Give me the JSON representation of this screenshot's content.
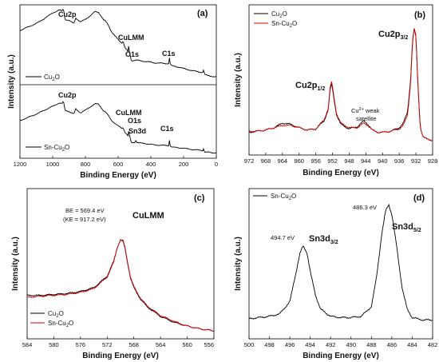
{
  "chart_data": [
    {
      "panel": "(a)",
      "type": "line",
      "xlabel": "Binding Energy (eV)",
      "ylabel": "Intensity (a.u.)",
      "xlim": [
        1200,
        0
      ],
      "xticks": [
        1200,
        1000,
        800,
        600,
        400,
        200,
        0
      ],
      "stacked": true,
      "series": [
        {
          "name": "Cu2O",
          "color": "#000000",
          "x": [
            1200,
            1150,
            1100,
            1050,
            1000,
            960,
            940,
            935,
            932,
            925,
            900,
            870,
            860,
            830,
            800,
            770,
            740,
            720,
            700,
            690,
            680,
            660,
            640,
            600,
            575,
            570,
            560,
            540,
            535,
            532,
            528,
            520,
            490,
            470,
            400,
            380,
            300,
            288,
            285,
            282,
            275,
            250,
            200,
            150,
            100,
            80,
            76,
            74,
            70,
            50,
            30,
            10,
            0
          ],
          "y": [
            0.68,
            0.73,
            0.78,
            0.85,
            0.93,
            0.97,
            0.96,
            0.99,
            0.96,
            0.84,
            0.82,
            0.78,
            0.86,
            0.8,
            0.84,
            0.89,
            0.95,
            0.94,
            0.87,
            0.83,
            0.82,
            0.76,
            0.66,
            0.55,
            0.5,
            0.54,
            0.44,
            0.38,
            0.46,
            0.38,
            0.36,
            0.25,
            0.26,
            0.25,
            0.23,
            0.22,
            0.21,
            0.21,
            0.34,
            0.21,
            0.18,
            0.17,
            0.14,
            0.11,
            0.09,
            0.08,
            0.18,
            0.08,
            0.05,
            0.04,
            0.03,
            0.02,
            0.02
          ]
        },
        {
          "name": "Sn-Cu2O",
          "color": "#000000",
          "x": [
            1200,
            1150,
            1100,
            1050,
            1000,
            960,
            940,
            935,
            932,
            925,
            900,
            870,
            860,
            830,
            800,
            770,
            740,
            720,
            700,
            690,
            680,
            660,
            640,
            600,
            575,
            570,
            560,
            540,
            535,
            532,
            528,
            520,
            495,
            492,
            490,
            487,
            485,
            470,
            400,
            380,
            300,
            288,
            285,
            282,
            275,
            250,
            200,
            150,
            100,
            80,
            76,
            74,
            70,
            50,
            30,
            10,
            0
          ],
          "y": [
            0.5,
            0.55,
            0.6,
            0.66,
            0.72,
            0.77,
            0.76,
            0.8,
            0.77,
            0.66,
            0.64,
            0.6,
            0.68,
            0.62,
            0.66,
            0.71,
            0.76,
            0.75,
            0.69,
            0.65,
            0.64,
            0.58,
            0.5,
            0.42,
            0.38,
            0.4,
            0.33,
            0.27,
            0.34,
            0.28,
            0.26,
            0.16,
            0.17,
            0.24,
            0.17,
            0.26,
            0.17,
            0.16,
            0.14,
            0.13,
            0.12,
            0.12,
            0.26,
            0.12,
            0.1,
            0.09,
            0.08,
            0.06,
            0.05,
            0.04,
            0.14,
            0.04,
            0.02,
            0.02,
            0.01,
            0.01,
            0.01
          ]
        }
      ],
      "annotations": [
        "Cu2p",
        "CuLMM",
        "O1s",
        "C1s",
        "Cu2p",
        "CuLMM",
        "O1s",
        "Sn3d",
        "C1s"
      ]
    },
    {
      "panel": "(b)",
      "type": "line",
      "xlabel": "Binding Energy (eV)",
      "ylabel": "Intensity (a.u.)",
      "xlim": [
        972,
        928
      ],
      "xticks": [
        972,
        968,
        964,
        960,
        956,
        952,
        948,
        944,
        940,
        936,
        932,
        928
      ],
      "series": [
        {
          "name": "Cu2O",
          "color": "#000000",
          "x": [
            972,
            970,
            968,
            966,
            964,
            962,
            960,
            958,
            956,
            954,
            953,
            952.6,
            952.2,
            951.6,
            951,
            950,
            948,
            946,
            944.5,
            943.5,
            942.5,
            941,
            940,
            938,
            936,
            935,
            934,
            933.3,
            932.8,
            932.4,
            932.0,
            931.5,
            931,
            930.5,
            930,
            929,
            928
          ],
          "y": [
            0.1,
            0.11,
            0.12,
            0.14,
            0.18,
            0.17,
            0.14,
            0.12,
            0.13,
            0.2,
            0.3,
            0.46,
            0.52,
            0.38,
            0.25,
            0.17,
            0.13,
            0.15,
            0.2,
            0.17,
            0.12,
            0.1,
            0.1,
            0.11,
            0.14,
            0.18,
            0.28,
            0.55,
            0.9,
            1.0,
            0.92,
            0.5,
            0.16,
            0.08,
            0.05,
            0.04,
            0.03
          ]
        },
        {
          "name": "Sn-Cu2O",
          "color": "#e00000",
          "x": [
            972,
            970,
            968,
            966,
            964,
            962,
            960,
            958,
            956,
            954,
            953,
            952.6,
            952.2,
            951.6,
            951,
            950,
            948,
            946,
            944.5,
            943.5,
            942.5,
            941,
            940,
            938,
            936,
            935,
            934,
            933.3,
            932.8,
            932.4,
            932.0,
            931.5,
            931,
            930.5,
            930,
            929,
            928
          ],
          "y": [
            0.11,
            0.11,
            0.12,
            0.14,
            0.16,
            0.16,
            0.14,
            0.12,
            0.13,
            0.21,
            0.31,
            0.48,
            0.54,
            0.4,
            0.26,
            0.18,
            0.14,
            0.14,
            0.18,
            0.16,
            0.12,
            0.1,
            0.1,
            0.11,
            0.13,
            0.16,
            0.25,
            0.52,
            0.88,
            1.0,
            0.94,
            0.52,
            0.17,
            0.08,
            0.05,
            0.04,
            0.03
          ]
        }
      ],
      "annotations": [
        "Cu2p1/2",
        "Cu2p3/2",
        "Cu2+ weak satellite"
      ]
    },
    {
      "panel": "(c)",
      "type": "line",
      "xlabel": "Binding Energy (eV)",
      "ylabel": "Intensity (a.u.)",
      "xlim": [
        584,
        556
      ],
      "xticks": [
        584,
        580,
        576,
        572,
        568,
        564,
        560,
        556
      ],
      "series": [
        {
          "name": "Cu2O",
          "color": "#000000",
          "x": [
            584,
            582,
            580,
            578,
            576,
            574,
            572,
            571,
            570.5,
            570,
            569.6,
            569.3,
            569,
            568.5,
            568,
            567,
            566,
            564,
            562,
            560,
            558,
            556
          ],
          "y": [
            0.42,
            0.42,
            0.43,
            0.44,
            0.46,
            0.5,
            0.62,
            0.78,
            0.92,
            1.0,
            0.98,
            0.9,
            0.78,
            0.6,
            0.5,
            0.38,
            0.3,
            0.2,
            0.14,
            0.1,
            0.07,
            0.05
          ]
        },
        {
          "name": "Sn-Cu2O",
          "color": "#e00000",
          "x": [
            584,
            582,
            580,
            578,
            576,
            574,
            572,
            571,
            570.5,
            570,
            569.6,
            569.3,
            569,
            568.5,
            568,
            567,
            566,
            564,
            562,
            560,
            558,
            556
          ],
          "y": [
            0.4,
            0.41,
            0.42,
            0.43,
            0.45,
            0.49,
            0.61,
            0.77,
            0.92,
            1.0,
            0.99,
            0.91,
            0.79,
            0.61,
            0.51,
            0.39,
            0.31,
            0.21,
            0.15,
            0.1,
            0.07,
            0.05
          ]
        }
      ],
      "annotations": [
        "BE = 569.4 eV",
        "(KE = 917.2 eV)",
        "CuLMM"
      ]
    },
    {
      "panel": "(d)",
      "type": "line",
      "xlabel": "Binding Energy (eV)",
      "ylabel": "Intensity (a.u.)",
      "xlim": [
        500,
        482
      ],
      "xticks": [
        500,
        498,
        496,
        494,
        492,
        490,
        488,
        486,
        484,
        482
      ],
      "series": [
        {
          "name": "Sn-Cu2O",
          "color": "#000000",
          "x": [
            500,
            499,
            498,
            497,
            496,
            495.5,
            495,
            494.7,
            494.3,
            494,
            493.5,
            493,
            492,
            491,
            490,
            489,
            488,
            487.5,
            487,
            486.6,
            486.3,
            486,
            485.6,
            485,
            484.5,
            484,
            483,
            482
          ],
          "y": [
            0.06,
            0.07,
            0.08,
            0.1,
            0.2,
            0.4,
            0.6,
            0.66,
            0.6,
            0.45,
            0.26,
            0.14,
            0.08,
            0.07,
            0.07,
            0.08,
            0.16,
            0.4,
            0.75,
            0.95,
            1.0,
            0.92,
            0.7,
            0.32,
            0.14,
            0.07,
            0.05,
            0.05
          ]
        }
      ],
      "annotations": [
        "494.7 eV",
        "Sn3d3/2",
        "486.3 eV",
        "Sn3d5/2"
      ]
    }
  ]
}
